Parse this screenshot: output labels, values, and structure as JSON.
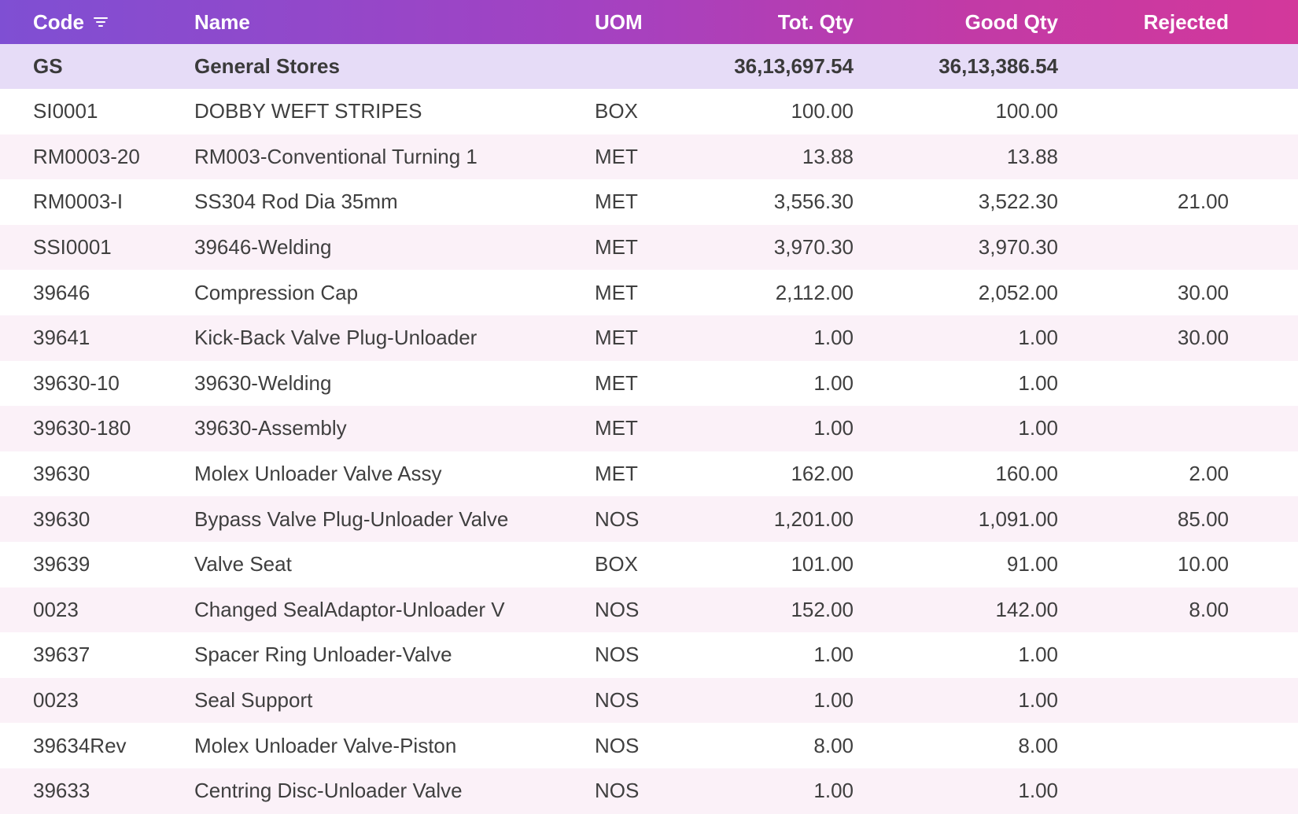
{
  "columns": {
    "code": "Code",
    "name": "Name",
    "uom": "UOM",
    "tot_qty": "Tot. Qty",
    "good_qty": "Good Qty",
    "rejected": "Rejected"
  },
  "group": {
    "code": "GS",
    "name": "General Stores",
    "uom": "",
    "tot_qty": "36,13,697.54",
    "good_qty": "36,13,386.54",
    "rejected": ""
  },
  "rows": [
    {
      "code": "SI0001",
      "name": "DOBBY WEFT STRIPES",
      "uom": "BOX",
      "tot_qty": "100.00",
      "good_qty": "100.00",
      "rejected": ""
    },
    {
      "code": "RM0003-20",
      "name": "RM003-Conventional Turning 1",
      "uom": "MET",
      "tot_qty": "13.88",
      "good_qty": "13.88",
      "rejected": ""
    },
    {
      "code": "RM0003-I",
      "name": "SS304 Rod Dia 35mm",
      "uom": "MET",
      "tot_qty": "3,556.30",
      "good_qty": "3,522.30",
      "rejected": "21.00"
    },
    {
      "code": "SSI0001",
      "name": "39646-Welding",
      "uom": "MET",
      "tot_qty": "3,970.30",
      "good_qty": "3,970.30",
      "rejected": ""
    },
    {
      "code": "39646",
      "name": "Compression Cap",
      "uom": "MET",
      "tot_qty": "2,112.00",
      "good_qty": "2,052.00",
      "rejected": "30.00"
    },
    {
      "code": "39641",
      "name": "Kick-Back Valve Plug-Unloader",
      "uom": "MET",
      "tot_qty": "1.00",
      "good_qty": "1.00",
      "rejected": "30.00"
    },
    {
      "code": "39630-10",
      "name": "39630-Welding",
      "uom": "MET",
      "tot_qty": "1.00",
      "good_qty": "1.00",
      "rejected": ""
    },
    {
      "code": "39630-180",
      "name": "39630-Assembly",
      "uom": "MET",
      "tot_qty": "1.00",
      "good_qty": "1.00",
      "rejected": ""
    },
    {
      "code": "39630",
      "name": "Molex Unloader Valve Assy",
      "uom": "MET",
      "tot_qty": "162.00",
      "good_qty": "160.00",
      "rejected": "2.00"
    },
    {
      "code": "39630",
      "name": "Bypass Valve Plug-Unloader Valve",
      "uom": "NOS",
      "tot_qty": "1,201.00",
      "good_qty": "1,091.00",
      "rejected": "85.00"
    },
    {
      "code": "39639",
      "name": "Valve Seat",
      "uom": "BOX",
      "tot_qty": "101.00",
      "good_qty": "91.00",
      "rejected": "10.00"
    },
    {
      "code": "0023",
      "name": "Changed SealAdaptor-Unloader V",
      "uom": "NOS",
      "tot_qty": "152.00",
      "good_qty": "142.00",
      "rejected": "8.00"
    },
    {
      "code": "39637",
      "name": "Spacer Ring Unloader-Valve",
      "uom": "NOS",
      "tot_qty": "1.00",
      "good_qty": "1.00",
      "rejected": ""
    },
    {
      "code": "0023",
      "name": "Seal Support",
      "uom": "NOS",
      "tot_qty": "1.00",
      "good_qty": "1.00",
      "rejected": ""
    },
    {
      "code": "39634Rev",
      "name": "Molex Unloader Valve-Piston",
      "uom": "NOS",
      "tot_qty": "8.00",
      "good_qty": "8.00",
      "rejected": ""
    },
    {
      "code": "39633",
      "name": "Centring Disc-Unloader Valve",
      "uom": "NOS",
      "tot_qty": "1.00",
      "good_qty": "1.00",
      "rejected": ""
    }
  ],
  "icons": {
    "sort": "filter-sort-icon"
  },
  "colors": {
    "header_gradient_start": "#7f4fd3",
    "header_gradient_end": "#d3389b",
    "group_row_bg": "#e6dcf7",
    "alt_row_bg": "#fbf1f8"
  }
}
